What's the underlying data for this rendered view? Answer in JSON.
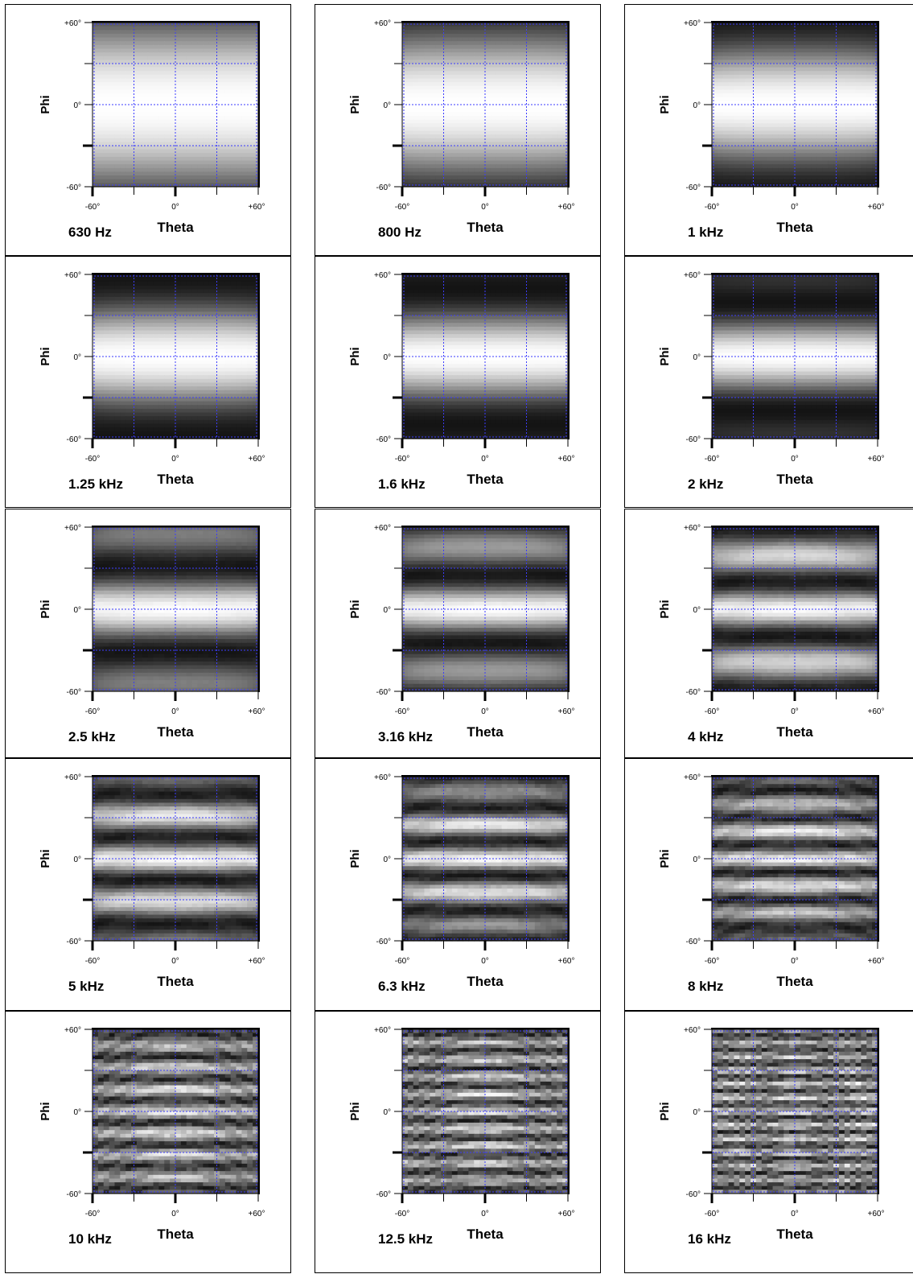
{
  "colors": {
    "grid": "#3b3bff",
    "frame": "#000000",
    "background": "#ffffff"
  },
  "axes": {
    "ylabel": "Phi",
    "xlabel": "Theta",
    "yticks": [
      "+60°",
      "0°",
      "-60°"
    ],
    "xticks": [
      "-60°",
      "0°",
      "+60°"
    ]
  },
  "chart_data": [
    {
      "type": "heatmap",
      "title": "630 Hz",
      "xlabel": "Theta",
      "ylabel": "Phi",
      "xlim": [
        -60,
        60
      ],
      "ylim": [
        -60,
        60
      ],
      "grid": true,
      "phi_ripple": 0.5,
      "theta_ripple": 0.0,
      "edge_dark": 0.4,
      "corner_dark": 0.0,
      "detail": 0.0
    },
    {
      "type": "heatmap",
      "title": "800 Hz",
      "xlabel": "Theta",
      "ylabel": "Phi",
      "xlim": [
        -60,
        60
      ],
      "ylim": [
        -60,
        60
      ],
      "grid": true,
      "phi_ripple": 0.6,
      "theta_ripple": 0.0,
      "edge_dark": 0.55,
      "corner_dark": 0.05,
      "detail": 0.0
    },
    {
      "type": "heatmap",
      "title": "1 kHz",
      "xlabel": "Theta",
      "ylabel": "Phi",
      "xlim": [
        -60,
        60
      ],
      "ylim": [
        -60,
        60
      ],
      "grid": true,
      "phi_ripple": 0.8,
      "theta_ripple": 0.0,
      "edge_dark": 0.75,
      "corner_dark": 0.15,
      "detail": 0.0
    },
    {
      "type": "heatmap",
      "title": "1.25 kHz",
      "xlabel": "Theta",
      "ylabel": "Phi",
      "xlim": [
        -60,
        60
      ],
      "ylim": [
        -60,
        60
      ],
      "grid": true,
      "phi_ripple": 1.0,
      "theta_ripple": 0.1,
      "edge_dark": 0.55,
      "corner_dark": 0.15,
      "detail": 0.0
    },
    {
      "type": "heatmap",
      "title": "1.6 kHz",
      "xlabel": "Theta",
      "ylabel": "Phi",
      "xlim": [
        -60,
        60
      ],
      "ylim": [
        -60,
        60
      ],
      "grid": true,
      "phi_ripple": 1.2,
      "theta_ripple": 0.1,
      "edge_dark": 0.5,
      "corner_dark": 0.1,
      "detail": 0.0
    },
    {
      "type": "heatmap",
      "title": "2 kHz",
      "xlabel": "Theta",
      "ylabel": "Phi",
      "xlim": [
        -60,
        60
      ],
      "ylim": [
        -60,
        60
      ],
      "grid": true,
      "phi_ripple": 1.5,
      "theta_ripple": 0.15,
      "edge_dark": 0.8,
      "corner_dark": 0.1,
      "detail": 0.0
    },
    {
      "type": "heatmap",
      "title": "2.5 kHz",
      "xlabel": "Theta",
      "ylabel": "Phi",
      "xlim": [
        -60,
        60
      ],
      "ylim": [
        -60,
        60
      ],
      "grid": true,
      "phi_ripple": 1.9,
      "theta_ripple": 0.2,
      "edge_dark": 0.6,
      "corner_dark": 0.1,
      "detail": 0.05
    },
    {
      "type": "heatmap",
      "title": "3.16 kHz",
      "xlabel": "Theta",
      "ylabel": "Phi",
      "xlim": [
        -60,
        60
      ],
      "ylim": [
        -60,
        60
      ],
      "grid": true,
      "phi_ripple": 2.4,
      "theta_ripple": 0.25,
      "edge_dark": 0.85,
      "corner_dark": 0.1,
      "detail": 0.05
    },
    {
      "type": "heatmap",
      "title": "4 kHz",
      "xlabel": "Theta",
      "ylabel": "Phi",
      "xlim": [
        -60,
        60
      ],
      "ylim": [
        -60,
        60
      ],
      "grid": true,
      "phi_ripple": 3.0,
      "theta_ripple": 0.3,
      "edge_dark": 0.55,
      "corner_dark": 0.1,
      "detail": 0.1
    },
    {
      "type": "heatmap",
      "title": "5 kHz",
      "xlabel": "Theta",
      "ylabel": "Phi",
      "xlim": [
        -60,
        60
      ],
      "ylim": [
        -60,
        60
      ],
      "grid": true,
      "phi_ripple": 3.8,
      "theta_ripple": 0.35,
      "edge_dark": 0.55,
      "corner_dark": 0.1,
      "detail": 0.15
    },
    {
      "type": "heatmap",
      "title": "6.3 kHz",
      "xlabel": "Theta",
      "ylabel": "Phi",
      "xlim": [
        -60,
        60
      ],
      "ylim": [
        -60,
        60
      ],
      "grid": true,
      "phi_ripple": 4.8,
      "theta_ripple": 0.4,
      "edge_dark": 0.8,
      "corner_dark": 0.1,
      "detail": 0.2
    },
    {
      "type": "heatmap",
      "title": "8 kHz",
      "xlabel": "Theta",
      "ylabel": "Phi",
      "xlim": [
        -60,
        60
      ],
      "ylim": [
        -60,
        60
      ],
      "grid": true,
      "phi_ripple": 6.0,
      "theta_ripple": 0.5,
      "edge_dark": 0.7,
      "corner_dark": 0.1,
      "detail": 0.3
    },
    {
      "type": "heatmap",
      "title": "10 kHz",
      "xlabel": "Theta",
      "ylabel": "Phi",
      "xlim": [
        -60,
        60
      ],
      "ylim": [
        -60,
        60
      ],
      "grid": true,
      "phi_ripple": 7.5,
      "theta_ripple": 0.8,
      "edge_dark": 0.3,
      "corner_dark": 0.0,
      "detail": 0.5
    },
    {
      "type": "heatmap",
      "title": "12.5 kHz",
      "xlabel": "Theta",
      "ylabel": "Phi",
      "xlim": [
        -60,
        60
      ],
      "ylim": [
        -60,
        60
      ],
      "grid": true,
      "phi_ripple": 9.5,
      "theta_ripple": 1.0,
      "edge_dark": 0.3,
      "corner_dark": 0.0,
      "detail": 0.6
    },
    {
      "type": "heatmap",
      "title": "16 kHz",
      "xlabel": "Theta",
      "ylabel": "Phi",
      "xlim": [
        -60,
        60
      ],
      "ylim": [
        -60,
        60
      ],
      "grid": true,
      "phi_ripple": 12.0,
      "theta_ripple": 2.0,
      "edge_dark": 0.3,
      "corner_dark": 0.0,
      "detail": 0.7
    }
  ]
}
